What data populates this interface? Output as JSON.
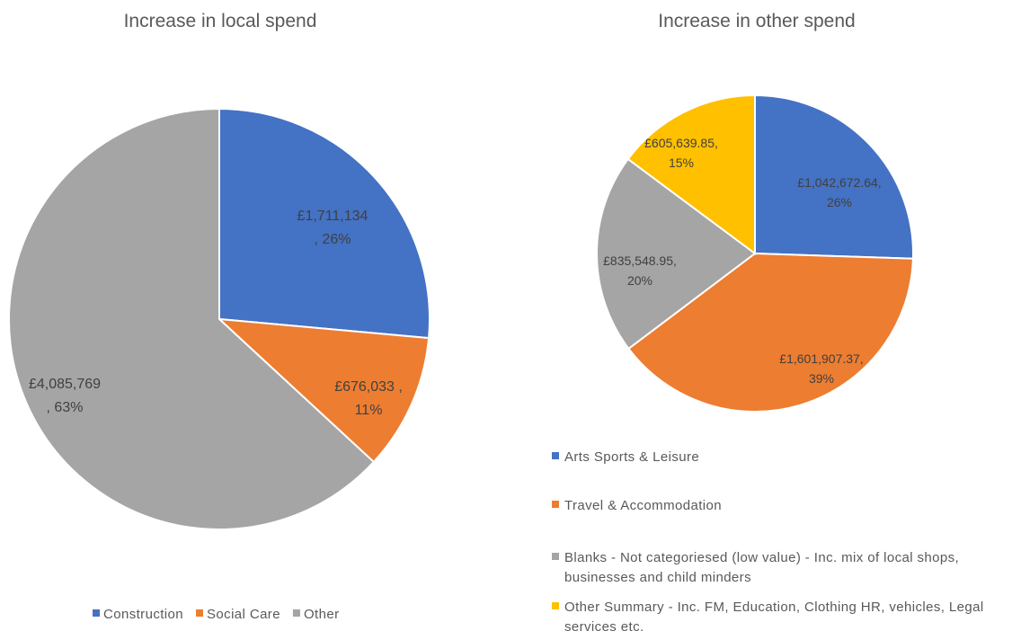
{
  "chart_data": [
    {
      "type": "pie",
      "title": "Increase in local spend",
      "categories": [
        "Construction",
        "Social Care",
        "Other"
      ],
      "values": [
        1711134,
        676033,
        4085769
      ],
      "colors": [
        "#4472C4",
        "#ED7D31",
        "#A5A5A5"
      ],
      "data_labels": [
        [
          "£1,711,134",
          ", 26%"
        ],
        [
          "£676,033   ,",
          "11%"
        ],
        [
          "£4,085,769",
          ", 63%"
        ]
      ],
      "legend": {
        "placement": "bottom",
        "entries": [
          "Construction",
          "Social Care",
          "Other"
        ]
      }
    },
    {
      "type": "pie",
      "title": "Increase in other spend",
      "categories": [
        "Arts Sports & Leisure",
        "Travel & Accommodation",
        "Blanks - Not categoriesed (low value) - Inc. mix of local shops, businesses and child minders",
        "Other Summary - Inc. FM, Education, Clothing HR, vehicles, Legal services etc."
      ],
      "values": [
        1042672.64,
        1601907.37,
        835548.95,
        605639.85
      ],
      "colors": [
        "#4472C4",
        "#ED7D31",
        "#A5A5A5",
        "#FFC000"
      ],
      "data_labels": [
        [
          "£1,042,672.64,",
          "26%"
        ],
        [
          "£1,601,907.37,",
          "39%"
        ],
        [
          "£835,548.95,",
          "20%"
        ],
        [
          "£605,639.85,",
          "15%"
        ]
      ],
      "legend": {
        "placement": "bottom",
        "entries": [
          [
            "Arts Sports & Leisure"
          ],
          [
            "Travel & Accommodation"
          ],
          [
            "Blanks - Not categoriesed (low value) - Inc. mix of local shops,",
            "businesses and child minders"
          ],
          [
            "Other Summary - Inc. FM, Education, Clothing HR, vehicles, Legal",
            "services etc."
          ]
        ]
      }
    }
  ]
}
